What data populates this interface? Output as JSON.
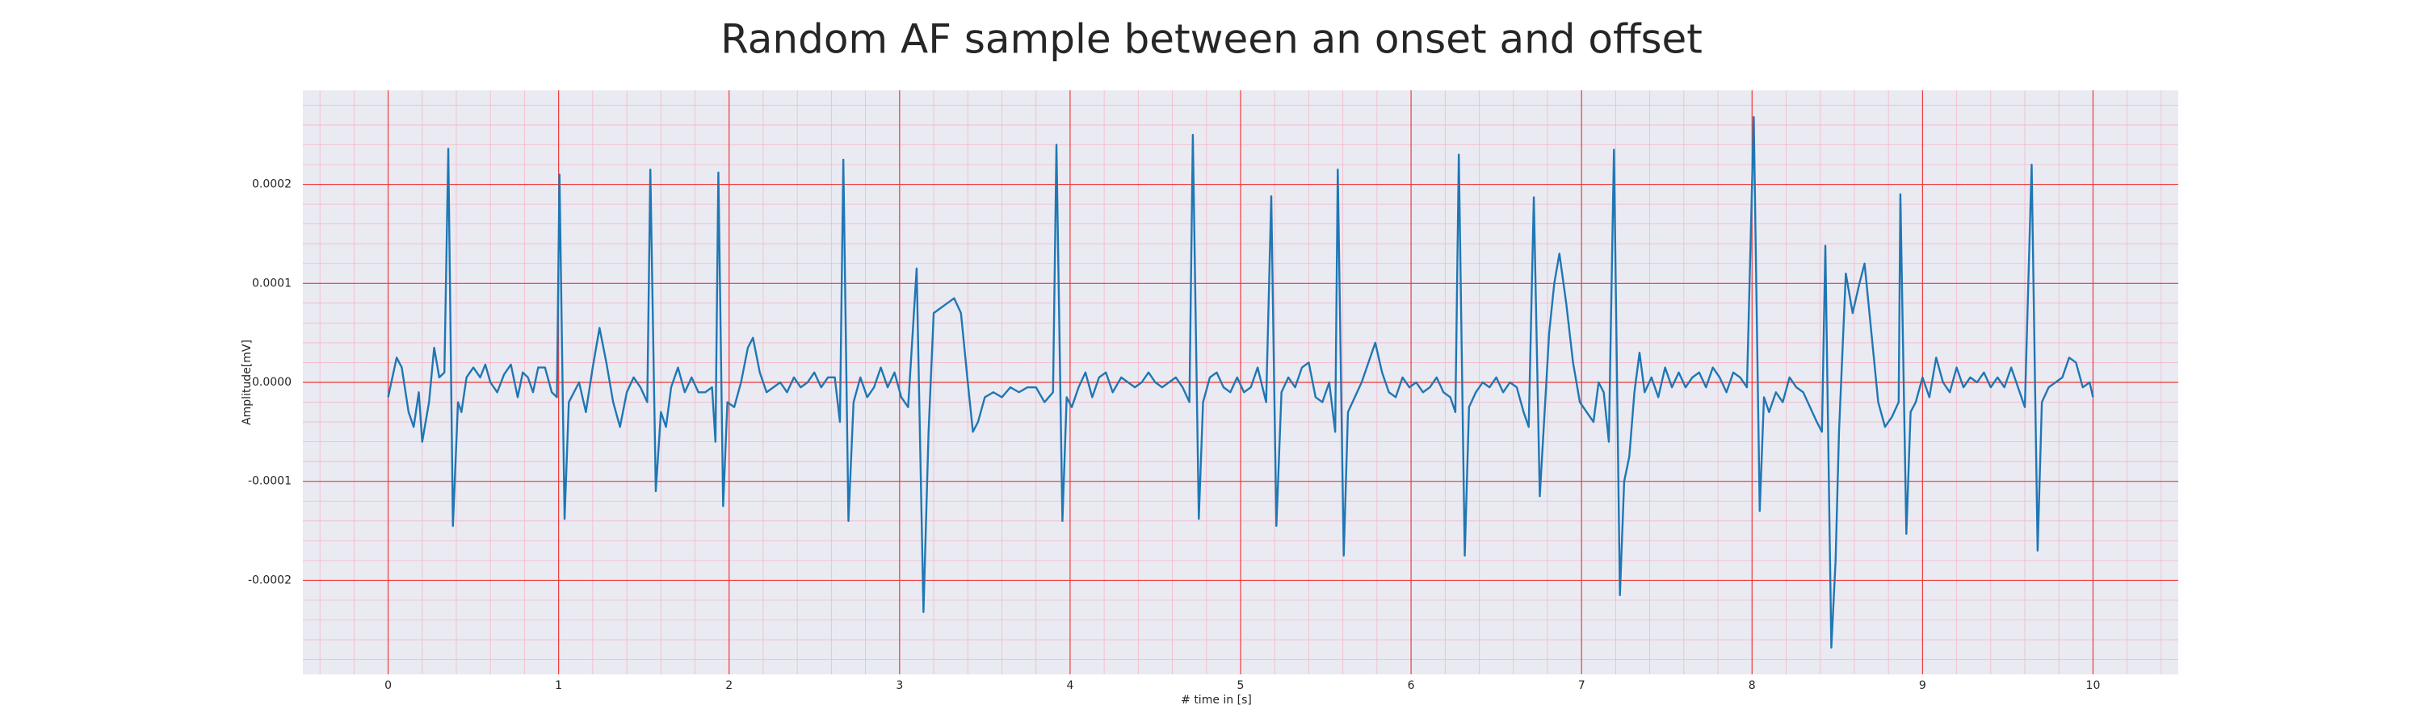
{
  "chart_data": {
    "type": "line",
    "title": "Random AF sample between an onset and offset",
    "xlabel": "# time in [s]",
    "ylabel": "Amplitude[mV]",
    "color": "#1f77b4",
    "grid": true,
    "minor_grid": true,
    "xlim": [
      -0.5,
      10.5
    ],
    "ylim": [
      -0.000295,
      0.000295
    ],
    "xticks": [
      0,
      1,
      2,
      3,
      4,
      5,
      6,
      7,
      8,
      9,
      10
    ],
    "yticks": [
      -0.0002,
      -0.0001,
      {
        "value": 0,
        "label": "0.0000"
      },
      0.0001,
      0.0002
    ],
    "x": [
      0.0,
      0.05,
      0.08,
      0.12,
      0.15,
      0.18,
      0.2,
      0.24,
      0.27,
      0.3,
      0.33,
      0.353,
      0.38,
      0.41,
      0.43,
      0.46,
      0.5,
      0.54,
      0.57,
      0.6,
      0.64,
      0.68,
      0.72,
      0.76,
      0.79,
      0.82,
      0.85,
      0.88,
      0.92,
      0.96,
      0.99,
      1.005,
      1.035,
      1.06,
      1.09,
      1.12,
      1.16,
      1.2,
      1.24,
      1.28,
      1.32,
      1.36,
      1.4,
      1.44,
      1.48,
      1.52,
      1.538,
      1.57,
      1.6,
      1.63,
      1.66,
      1.7,
      1.74,
      1.78,
      1.82,
      1.86,
      1.9,
      1.92,
      1.937,
      1.965,
      1.99,
      2.03,
      2.07,
      2.11,
      2.14,
      2.18,
      2.22,
      2.26,
      2.3,
      2.34,
      2.38,
      2.42,
      2.46,
      2.5,
      2.54,
      2.58,
      2.62,
      2.65,
      2.67,
      2.7,
      2.73,
      2.77,
      2.81,
      2.85,
      2.89,
      2.93,
      2.97,
      3.01,
      3.05,
      3.1,
      3.14,
      3.17,
      3.2,
      3.24,
      3.28,
      3.32,
      3.36,
      3.4,
      3.43,
      3.46,
      3.5,
      3.55,
      3.6,
      3.65,
      3.7,
      3.75,
      3.8,
      3.85,
      3.9,
      3.92,
      3.955,
      3.98,
      4.01,
      4.05,
      4.09,
      4.13,
      4.17,
      4.21,
      4.25,
      4.3,
      4.34,
      4.38,
      4.42,
      4.46,
      4.5,
      4.54,
      4.58,
      4.62,
      4.66,
      4.7,
      4.72,
      4.755,
      4.78,
      4.82,
      4.86,
      4.9,
      4.94,
      4.98,
      5.02,
      5.06,
      5.1,
      5.15,
      5.18,
      5.21,
      5.24,
      5.28,
      5.32,
      5.36,
      5.4,
      5.44,
      5.48,
      5.52,
      5.555,
      5.57,
      5.605,
      5.63,
      5.67,
      5.71,
      5.75,
      5.79,
      5.83,
      5.87,
      5.91,
      5.95,
      5.99,
      6.03,
      6.07,
      6.11,
      6.15,
      6.19,
      6.23,
      6.26,
      6.28,
      6.315,
      6.34,
      6.38,
      6.42,
      6.46,
      6.5,
      6.54,
      6.58,
      6.62,
      6.66,
      6.69,
      6.72,
      6.755,
      6.78,
      6.81,
      6.84,
      6.87,
      6.91,
      6.95,
      6.99,
      7.03,
      7.07,
      7.1,
      7.13,
      7.16,
      7.19,
      7.225,
      7.25,
      7.28,
      7.31,
      7.34,
      7.37,
      7.41,
      7.45,
      7.49,
      7.53,
      7.57,
      7.61,
      7.65,
      7.69,
      7.73,
      7.77,
      7.81,
      7.85,
      7.89,
      7.93,
      7.97,
      8.01,
      8.045,
      8.07,
      8.1,
      8.14,
      8.18,
      8.22,
      8.26,
      8.3,
      8.34,
      8.38,
      8.41,
      8.43,
      8.465,
      8.49,
      8.51,
      8.55,
      8.59,
      8.63,
      8.66,
      8.7,
      8.74,
      8.78,
      8.82,
      8.86,
      8.87,
      8.905,
      8.93,
      8.96,
      9.0,
      9.04,
      9.08,
      9.12,
      9.16,
      9.2,
      9.24,
      9.28,
      9.32,
      9.36,
      9.4,
      9.44,
      9.48,
      9.52,
      9.56,
      9.6,
      9.64,
      9.675,
      9.7,
      9.74,
      9.78,
      9.82,
      9.86,
      9.9,
      9.94,
      9.98,
      10.0
    ],
    "values": [
      -1.5e-05,
      2.5e-05,
      1.5e-05,
      -3e-05,
      -4.5e-05,
      -1e-05,
      -6e-05,
      -2e-05,
      3.5e-05,
      5e-06,
      1e-05,
      0.000236,
      -0.000145,
      -2e-05,
      -3e-05,
      5e-06,
      1.5e-05,
      5e-06,
      1.8e-05,
      0,
      -1e-05,
      8e-06,
      1.8e-05,
      -1.5e-05,
      1e-05,
      5e-06,
      -1e-05,
      1.5e-05,
      1.5e-05,
      -1e-05,
      -1.5e-05,
      0.00021,
      -0.000138,
      -2e-05,
      -1e-05,
      0,
      -3e-05,
      1.5e-05,
      5.5e-05,
      2e-05,
      -2e-05,
      -4.5e-05,
      -1e-05,
      5e-06,
      -5e-06,
      -2e-05,
      0.000215,
      -0.00011,
      -3e-05,
      -4.5e-05,
      -5e-06,
      1.5e-05,
      -1e-05,
      5e-06,
      -1e-05,
      -1e-05,
      -5e-06,
      -6e-05,
      0.000212,
      -0.000125,
      -2e-05,
      -2.5e-05,
      0,
      3.5e-05,
      4.5e-05,
      1e-05,
      -1e-05,
      -5e-06,
      0,
      -1e-05,
      5e-06,
      -5e-06,
      0,
      1e-05,
      -5e-06,
      5e-06,
      5e-06,
      -4e-05,
      0.000225,
      -0.00014,
      -2e-05,
      5e-06,
      -1.5e-05,
      -5e-06,
      1.5e-05,
      -5e-06,
      1e-05,
      -1.5e-05,
      -2.5e-05,
      0.000115,
      -0.000232,
      -5e-05,
      7e-05,
      7.5e-05,
      8e-05,
      8.5e-05,
      7e-05,
      0,
      -5e-05,
      -4e-05,
      -1.5e-05,
      -1e-05,
      -1.5e-05,
      -5e-06,
      -1e-05,
      -5e-06,
      -5e-06,
      -2e-05,
      -1e-05,
      0.00024,
      -0.00014,
      -1.5e-05,
      -2.5e-05,
      -5e-06,
      1e-05,
      -1.5e-05,
      5e-06,
      1e-05,
      -1e-05,
      5e-06,
      0,
      -5e-06,
      0,
      1e-05,
      0,
      -5e-06,
      0,
      5e-06,
      -5e-06,
      -2e-05,
      0.00025,
      -0.000138,
      -2e-05,
      5e-06,
      1e-05,
      -5e-06,
      -1e-05,
      5e-06,
      -1e-05,
      -5e-06,
      1.5e-05,
      -2e-05,
      0.000188,
      -0.000145,
      -1e-05,
      5e-06,
      -5e-06,
      1.5e-05,
      2e-05,
      -1.5e-05,
      -2e-05,
      0,
      -5e-05,
      0.000215,
      -0.000175,
      -3e-05,
      -1.5e-05,
      0,
      2e-05,
      4e-05,
      1e-05,
      -1e-05,
      -1.5e-05,
      5e-06,
      -5e-06,
      0,
      -1e-05,
      -5e-06,
      5e-06,
      -1e-05,
      -1.5e-05,
      -3e-05,
      0.00023,
      -0.000175,
      -2.5e-05,
      -1e-05,
      0,
      -5e-06,
      5e-06,
      -1e-05,
      0,
      -5e-06,
      -3e-05,
      -4.5e-05,
      0.000187,
      -0.000115,
      -4e-05,
      5e-05,
      0.0001,
      0.00013,
      8e-05,
      2e-05,
      -2e-05,
      -3e-05,
      -4e-05,
      0,
      -1e-05,
      -6e-05,
      0.000235,
      -0.000215,
      -0.0001,
      -7.5e-05,
      -1e-05,
      3e-05,
      -1e-05,
      5e-06,
      -1.5e-05,
      1.5e-05,
      -5e-06,
      1e-05,
      -5e-06,
      5e-06,
      1e-05,
      -5e-06,
      1.5e-05,
      5e-06,
      -1e-05,
      1e-05,
      5e-06,
      -5e-06,
      0.000268,
      -0.00013,
      -1.5e-05,
      -3e-05,
      -1e-05,
      -2e-05,
      5e-06,
      -5e-06,
      -1e-05,
      -2.5e-05,
      -4e-05,
      -5e-05,
      0.000138,
      -0.000268,
      -0.00018,
      -5e-05,
      0.00011,
      7e-05,
      0.0001,
      0.00012,
      5e-05,
      -2e-05,
      -4.5e-05,
      -3.5e-05,
      -2e-05,
      0.00019,
      -0.000153,
      -3e-05,
      -2e-05,
      5e-06,
      -1.5e-05,
      2.5e-05,
      0,
      -1e-05,
      1.5e-05,
      -5e-06,
      5e-06,
      0,
      1e-05,
      -5e-06,
      5e-06,
      -5e-06,
      1.5e-05,
      -5e-06,
      -2.5e-05,
      0.00022,
      -0.00017,
      -2e-05,
      -5e-06,
      0,
      5e-06,
      2.5e-05,
      2e-05,
      -5e-06,
      0,
      -1.5e-05
    ]
  }
}
